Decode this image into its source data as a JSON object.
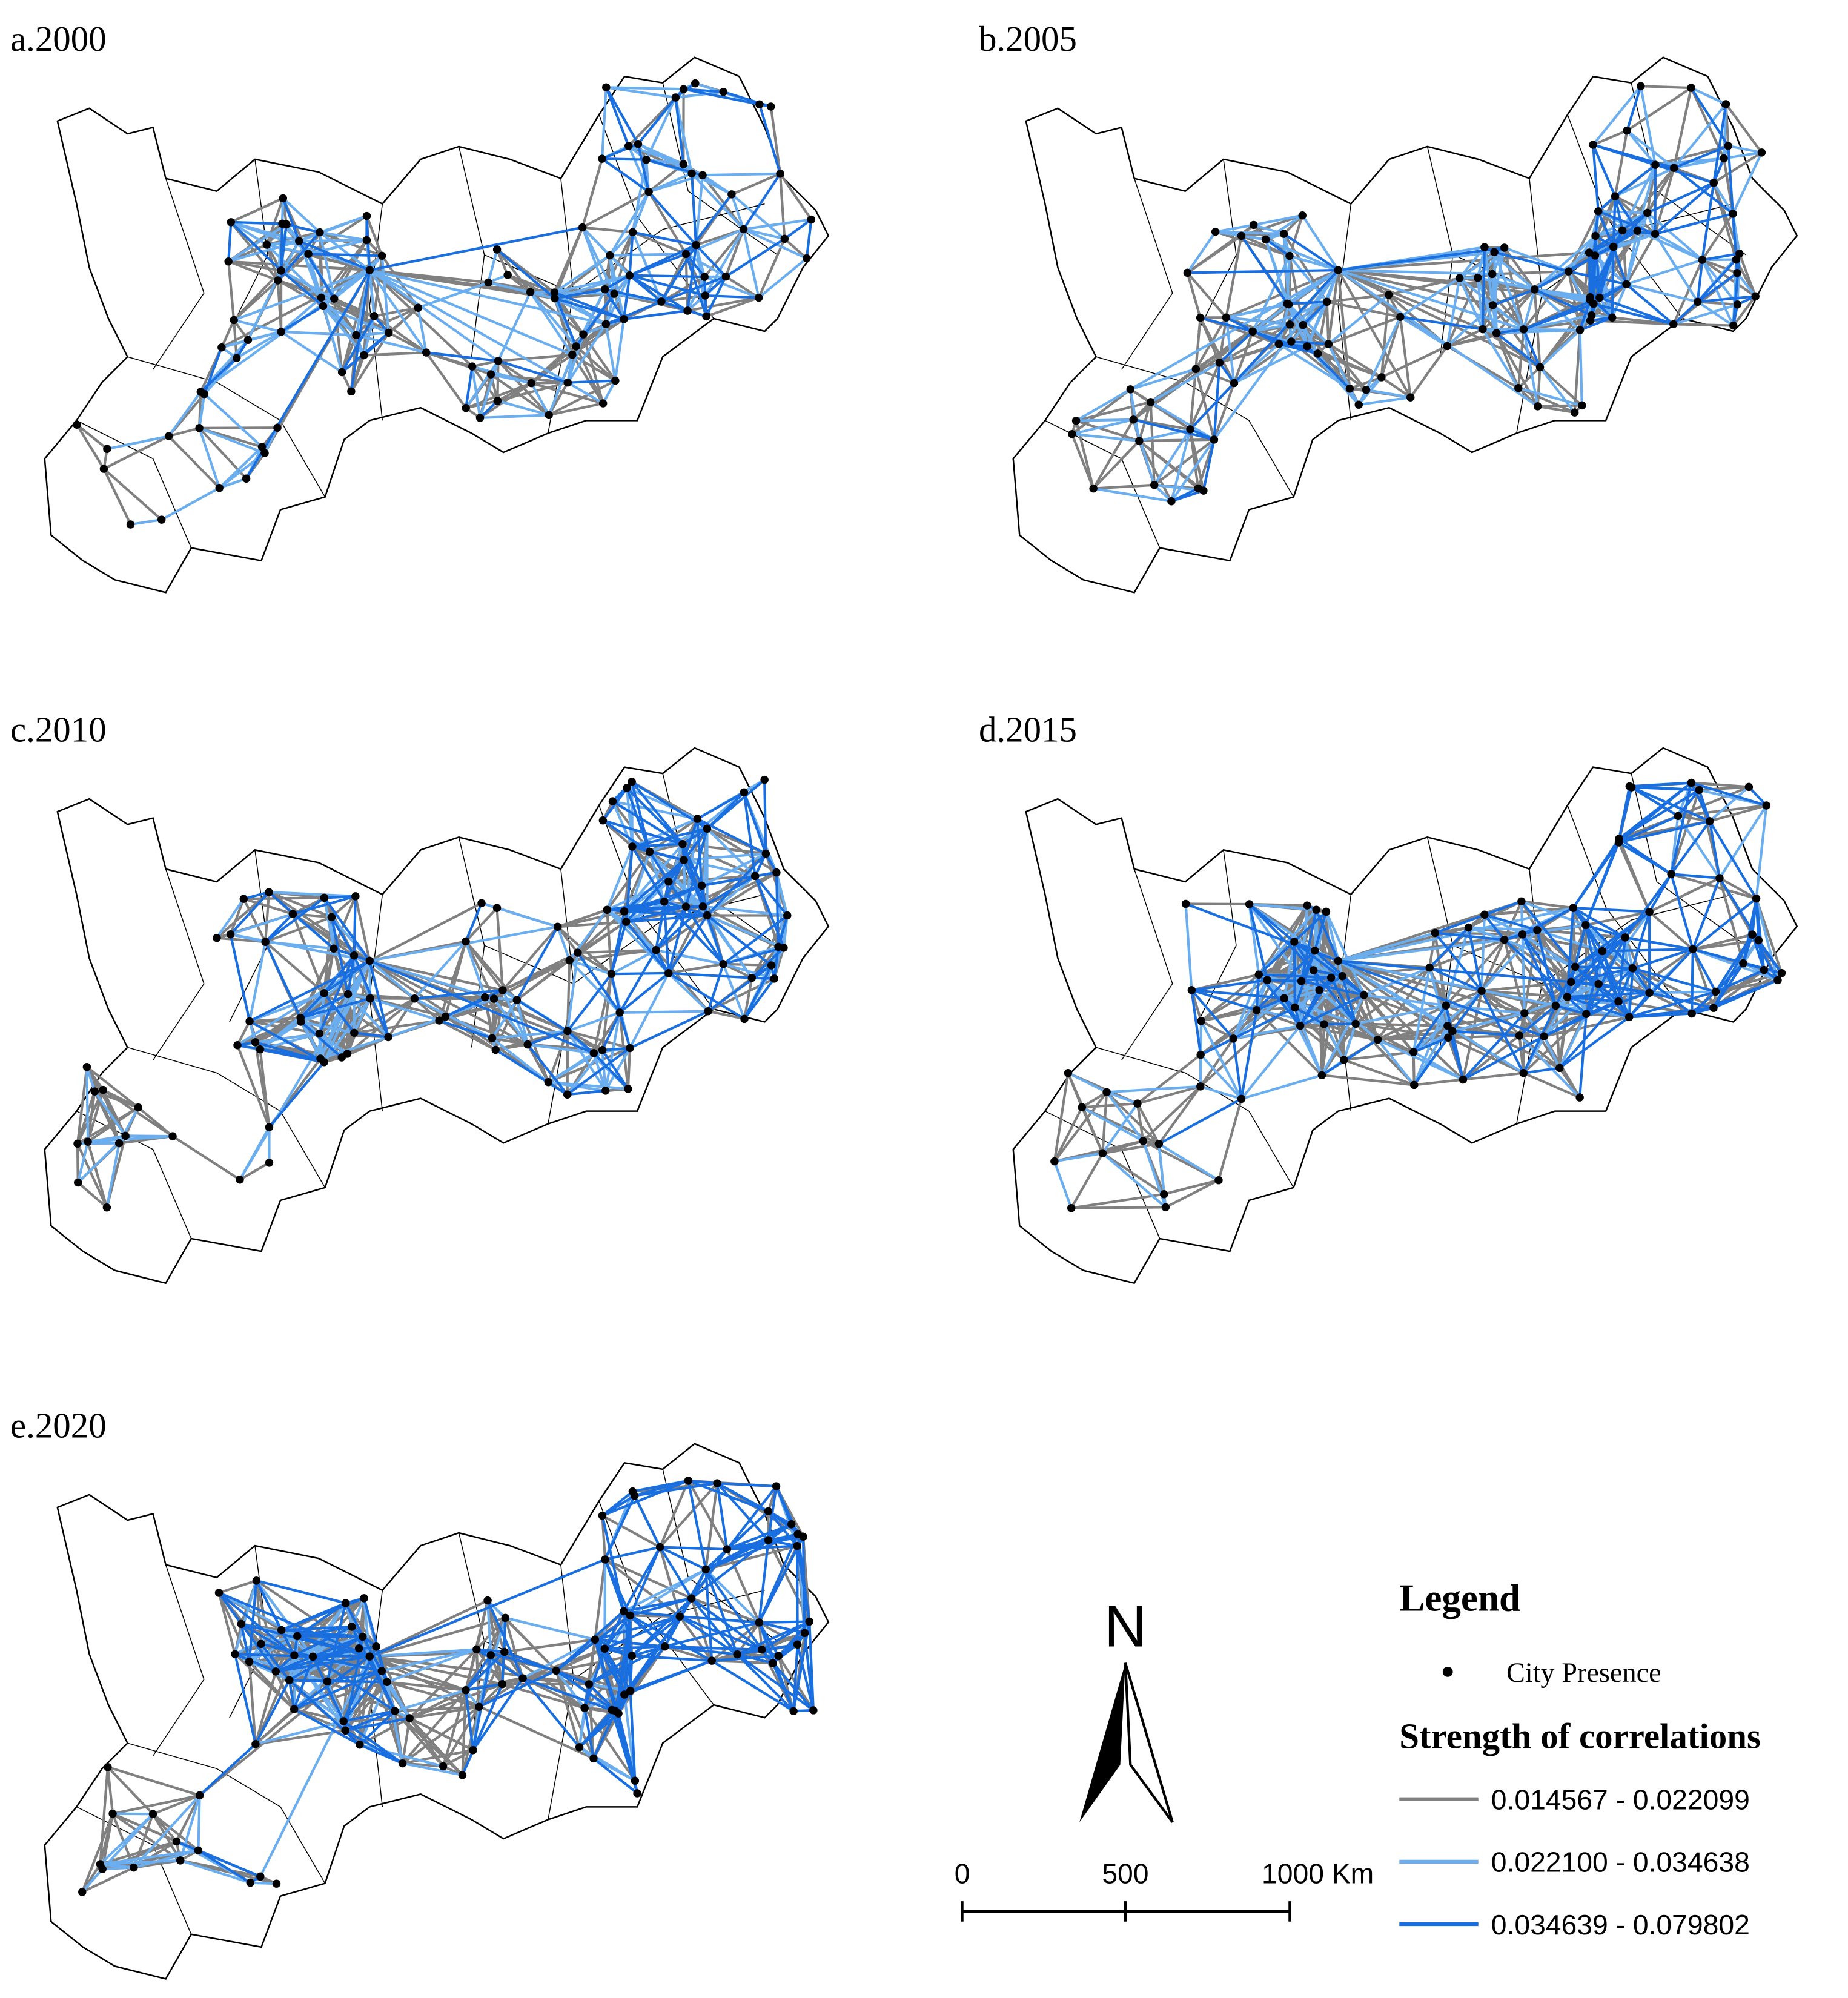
{
  "panels": [
    {
      "label": "a.2000"
    },
    {
      "label": "b.2005"
    },
    {
      "label": "c.2010"
    },
    {
      "label": "d.2015"
    },
    {
      "label": "e.2020"
    }
  ],
  "legend": {
    "title": "Legend",
    "city": "City Presence",
    "strength_title": "Strength of correlations",
    "classes": [
      {
        "label": "0.014567 - 0.022099",
        "color": "#808080"
      },
      {
        "label": "0.022100 - 0.034638",
        "color": "#6aaef0"
      },
      {
        "label": "0.034639 - 0.079802",
        "color": "#1a6fe0"
      }
    ]
  },
  "north": "N",
  "scale_bar": {
    "ticks": [
      "0",
      "500",
      "1000 Km"
    ]
  }
}
